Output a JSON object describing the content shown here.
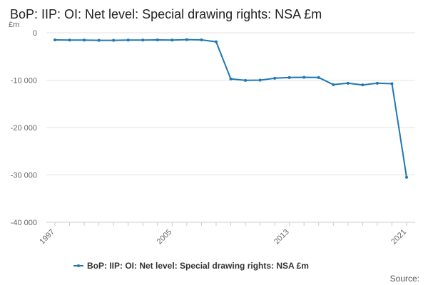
{
  "chart_data": {
    "type": "line",
    "title": "BoP: IIP: OI: Net level: Special drawing rights: NSA £m",
    "y_unit_label": "£m",
    "xlabel": "",
    "ylabel": "",
    "x": [
      1997,
      1998,
      1999,
      2000,
      2001,
      2002,
      2003,
      2004,
      2005,
      2006,
      2007,
      2008,
      2009,
      2010,
      2011,
      2012,
      2013,
      2014,
      2015,
      2016,
      2017,
      2018,
      2019,
      2020,
      2021
    ],
    "x_tick_labels": [
      {
        "value": 1997,
        "label": "1997"
      },
      {
        "value": 2005,
        "label": "2005"
      },
      {
        "value": 2013,
        "label": "2013"
      },
      {
        "value": 2021,
        "label": "2021"
      }
    ],
    "series": [
      {
        "name": "BoP: IIP: OI: Net level: Special drawing rights: NSA £m",
        "color": "#1f78b4",
        "values": [
          -1500,
          -1550,
          -1550,
          -1600,
          -1600,
          -1550,
          -1550,
          -1500,
          -1550,
          -1450,
          -1500,
          -1900,
          -9750,
          -10050,
          -10000,
          -9600,
          -9450,
          -9400,
          -9450,
          -10950,
          -10650,
          -11000,
          -10650,
          -10750,
          -30500
        ]
      }
    ],
    "ylim": [
      -40000,
      0
    ],
    "y_ticks": [
      {
        "value": 0,
        "label": "0"
      },
      {
        "value": -10000,
        "label": "-10 000"
      },
      {
        "value": -20000,
        "label": "-20 000"
      },
      {
        "value": -30000,
        "label": "-30 000"
      },
      {
        "value": -40000,
        "label": "-40 000"
      }
    ],
    "grid": true,
    "legend_position": "bottom-center",
    "source_label": "Source:"
  }
}
